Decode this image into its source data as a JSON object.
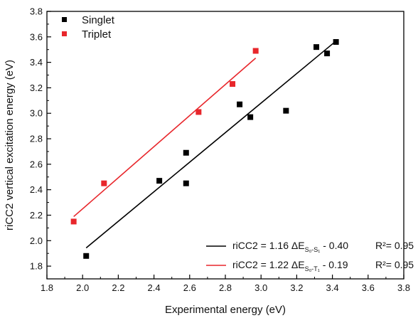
{
  "chart_data": {
    "type": "scatter",
    "xlabel": "Experimental energy (eV)",
    "ylabel": "riCC2 vertical excitation energy (eV)",
    "xlim": [
      1.8,
      3.8
    ],
    "ylim": [
      1.7,
      3.8
    ],
    "x_ticks": [
      "1.8",
      "2.0",
      "2.2",
      "2.4",
      "2.6",
      "2.8",
      "3.0",
      "3.2",
      "3.4",
      "3.6",
      "3.8"
    ],
    "y_ticks": [
      "1.8",
      "2.0",
      "2.2",
      "2.4",
      "2.6",
      "2.8",
      "3.0",
      "3.2",
      "3.4",
      "3.6",
      "3.8"
    ],
    "grid": false,
    "legend_position": "top-left",
    "series": [
      {
        "name": "Singlet",
        "color": "#000000",
        "marker": "square",
        "points": [
          {
            "x": 2.02,
            "y": 1.88
          },
          {
            "x": 2.43,
            "y": 2.47
          },
          {
            "x": 2.58,
            "y": 2.69
          },
          {
            "x": 2.58,
            "y": 2.45
          },
          {
            "x": 2.88,
            "y": 3.07
          },
          {
            "x": 2.94,
            "y": 2.97
          },
          {
            "x": 3.14,
            "y": 3.02
          },
          {
            "x": 3.31,
            "y": 3.52
          },
          {
            "x": 3.37,
            "y": 3.47
          },
          {
            "x": 3.42,
            "y": 3.56
          }
        ],
        "fit": {
          "slope": 1.16,
          "intercept": -0.4,
          "x_range": [
            2.02,
            3.42
          ]
        }
      },
      {
        "name": "Triplet",
        "color": "#e8262b",
        "marker": "square",
        "points": [
          {
            "x": 1.95,
            "y": 2.15
          },
          {
            "x": 2.12,
            "y": 2.45
          },
          {
            "x": 2.65,
            "y": 3.01
          },
          {
            "x": 2.84,
            "y": 3.23
          },
          {
            "x": 2.97,
            "y": 3.49
          }
        ],
        "fit": {
          "slope": 1.22,
          "intercept": -0.19,
          "x_range": [
            1.95,
            2.97
          ]
        }
      }
    ],
    "fit_legend": [
      {
        "color": "#000000",
        "prefix": "riCC2 = 1.16 ΔE",
        "sub": "S₀-S₁",
        "suffix": " - 0.40",
        "r2": "R²= 0.95"
      },
      {
        "color": "#e8262b",
        "prefix": "riCC2 = 1.22 ΔE",
        "sub": "S₀-T₁",
        "suffix": " - 0.19",
        "r2": "R²= 0.95"
      }
    ]
  }
}
